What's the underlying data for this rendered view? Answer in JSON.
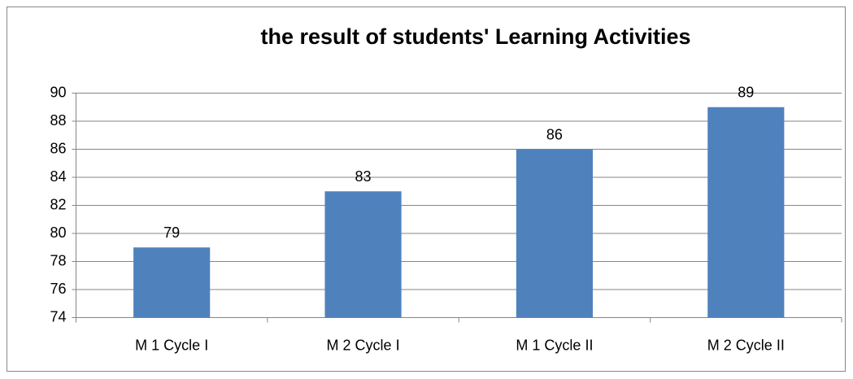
{
  "chart_data": {
    "type": "bar",
    "title": "the result of students' Learning Activities",
    "categories": [
      "M 1 Cycle I",
      "M 2 Cycle I",
      "M 1 Cycle II",
      "M 2 Cycle II"
    ],
    "values": [
      79,
      83,
      86,
      89
    ],
    "color": "#4f81bd",
    "ylim": [
      74,
      90
    ],
    "yticks": [
      74,
      76,
      78,
      80,
      82,
      84,
      86,
      88,
      90
    ],
    "grid": true
  }
}
